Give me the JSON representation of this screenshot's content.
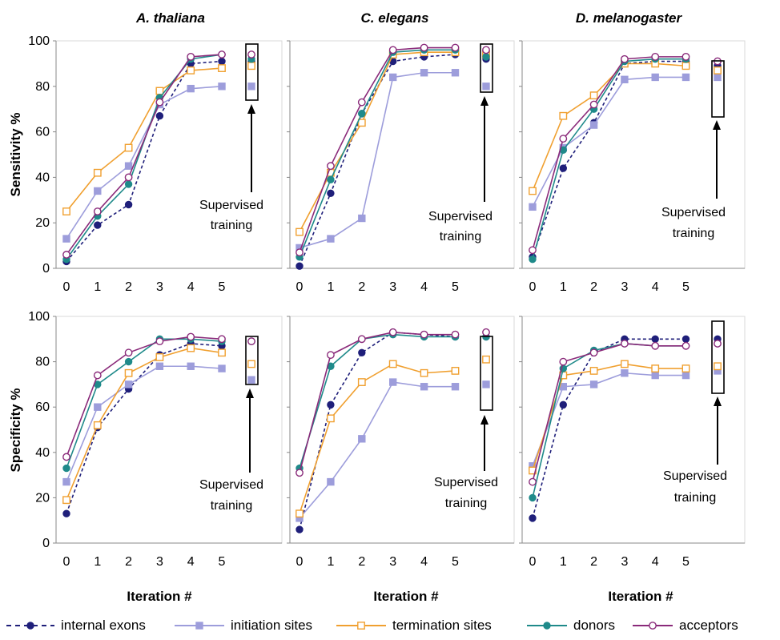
{
  "columns": [
    "A. thaliana",
    "C. elegans",
    "D. melanogaster"
  ],
  "rows": [
    "Sensitivity %",
    "Specificity %"
  ],
  "xlabel": "Iteration #",
  "annotation": [
    "Supervised",
    "training"
  ],
  "legend": [
    "internal exons",
    "initiation sites",
    "termination sites",
    "donors",
    "acceptors"
  ],
  "series_styles": [
    {
      "name": "internal exons",
      "color": "#1f1f7a",
      "marker": "circle-filled",
      "dashed": true
    },
    {
      "name": "initiation sites",
      "color": "#9d9ddb",
      "marker": "square-filled",
      "dashed": false
    },
    {
      "name": "termination sites",
      "color": "#f0a030",
      "marker": "square-open",
      "dashed": false
    },
    {
      "name": "donors",
      "color": "#1f8a8a",
      "marker": "circle-filled",
      "dashed": false
    },
    {
      "name": "acceptors",
      "color": "#8a2a7a",
      "marker": "circle-open",
      "dashed": false
    }
  ],
  "chart_data": [
    {
      "type": "line",
      "title": "A. thaliana",
      "ylabel": "Sensitivity %",
      "xlabel": "Iteration #",
      "x": [
        0,
        1,
        2,
        3,
        4,
        5
      ],
      "ylim": [
        0,
        100
      ],
      "series": [
        {
          "name": "internal exons",
          "values": [
            3,
            19,
            28,
            67,
            90,
            91
          ],
          "supervised": 91
        },
        {
          "name": "initiation sites",
          "values": [
            13,
            34,
            45,
            72,
            79,
            80
          ],
          "supervised": 80
        },
        {
          "name": "termination sites",
          "values": [
            25,
            42,
            53,
            78,
            87,
            88
          ],
          "supervised": 89
        },
        {
          "name": "donors",
          "values": [
            4,
            23,
            37,
            75,
            92,
            94
          ],
          "supervised": 92
        },
        {
          "name": "acceptors",
          "values": [
            6,
            25,
            40,
            73,
            93,
            94
          ],
          "supervised": 94
        }
      ]
    },
    {
      "type": "line",
      "title": "C. elegans",
      "ylabel": "Sensitivity %",
      "xlabel": "Iteration #",
      "x": [
        0,
        1,
        2,
        3,
        4,
        5
      ],
      "ylim": [
        0,
        100
      ],
      "series": [
        {
          "name": "internal exons",
          "values": [
            1,
            33,
            68,
            91,
            93,
            94
          ],
          "supervised": 92
        },
        {
          "name": "initiation sites",
          "values": [
            9,
            13,
            22,
            84,
            86,
            86
          ],
          "supervised": 80
        },
        {
          "name": "termination sites",
          "values": [
            16,
            42,
            64,
            94,
            95,
            95
          ],
          "supervised": 94
        },
        {
          "name": "donors",
          "values": [
            5,
            39,
            68,
            95,
            96,
            96
          ],
          "supervised": 93
        },
        {
          "name": "acceptors",
          "values": [
            7,
            45,
            73,
            96,
            97,
            97
          ],
          "supervised": 96
        }
      ]
    },
    {
      "type": "line",
      "title": "D. melanogaster",
      "ylabel": "Sensitivity %",
      "xlabel": "Iteration #",
      "x": [
        0,
        1,
        2,
        3,
        4,
        5
      ],
      "ylim": [
        0,
        100
      ],
      "series": [
        {
          "name": "internal exons",
          "values": [
            5,
            44,
            64,
            90,
            91,
            91
          ],
          "supervised": 89
        },
        {
          "name": "initiation sites",
          "values": [
            27,
            53,
            63,
            83,
            84,
            84
          ],
          "supervised": 84
        },
        {
          "name": "termination sites",
          "values": [
            34,
            67,
            76,
            90,
            90,
            89
          ],
          "supervised": 87
        },
        {
          "name": "donors",
          "values": [
            4,
            52,
            70,
            91,
            92,
            92
          ],
          "supervised": 91
        },
        {
          "name": "acceptors",
          "values": [
            8,
            57,
            72,
            92,
            93,
            93
          ],
          "supervised": 91
        }
      ]
    },
    {
      "type": "line",
      "title": "",
      "ylabel": "Specificity %",
      "xlabel": "Iteration #",
      "x": [
        0,
        1,
        2,
        3,
        4,
        5
      ],
      "ylim": [
        0,
        100
      ],
      "series": [
        {
          "name": "internal exons",
          "values": [
            13,
            51,
            68,
            83,
            88,
            87
          ],
          "supervised": 89
        },
        {
          "name": "initiation sites",
          "values": [
            27,
            60,
            70,
            78,
            78,
            77
          ],
          "supervised": 72
        },
        {
          "name": "termination sites",
          "values": [
            19,
            52,
            75,
            82,
            86,
            84
          ],
          "supervised": 79
        },
        {
          "name": "donors",
          "values": [
            33,
            70,
            80,
            90,
            90,
            89
          ],
          "supervised": 89
        },
        {
          "name": "acceptors",
          "values": [
            38,
            74,
            84,
            89,
            91,
            90
          ],
          "supervised": 89
        }
      ]
    },
    {
      "type": "line",
      "title": "",
      "ylabel": "Specificity %",
      "xlabel": "Iteration #",
      "x": [
        0,
        1,
        2,
        3,
        4,
        5
      ],
      "ylim": [
        0,
        100
      ],
      "series": [
        {
          "name": "internal exons",
          "values": [
            6,
            61,
            84,
            93,
            92,
            91
          ],
          "supervised": 91
        },
        {
          "name": "initiation sites",
          "values": [
            11,
            27,
            46,
            71,
            69,
            69
          ],
          "supervised": 70
        },
        {
          "name": "termination sites",
          "values": [
            13,
            55,
            71,
            79,
            75,
            76
          ],
          "supervised": 81
        },
        {
          "name": "donors",
          "values": [
            33,
            78,
            90,
            92,
            91,
            91
          ],
          "supervised": 91
        },
        {
          "name": "acceptors",
          "values": [
            31,
            83,
            90,
            93,
            92,
            92
          ],
          "supervised": 93
        }
      ]
    },
    {
      "type": "line",
      "title": "",
      "ylabel": "Specificity %",
      "xlabel": "Iteration #",
      "x": [
        0,
        1,
        2,
        3,
        4,
        5
      ],
      "ylim": [
        0,
        100
      ],
      "series": [
        {
          "name": "internal exons",
          "values": [
            11,
            61,
            84,
            90,
            90,
            90
          ],
          "supervised": 90
        },
        {
          "name": "initiation sites",
          "values": [
            34,
            69,
            70,
            75,
            74,
            74
          ],
          "supervised": 76
        },
        {
          "name": "termination sites",
          "values": [
            32,
            74,
            76,
            79,
            77,
            77
          ],
          "supervised": 78
        },
        {
          "name": "donors",
          "values": [
            20,
            77,
            85,
            88,
            87,
            87
          ],
          "supervised": 88
        },
        {
          "name": "acceptors",
          "values": [
            27,
            80,
            84,
            88,
            87,
            87
          ],
          "supervised": 88
        }
      ]
    }
  ]
}
